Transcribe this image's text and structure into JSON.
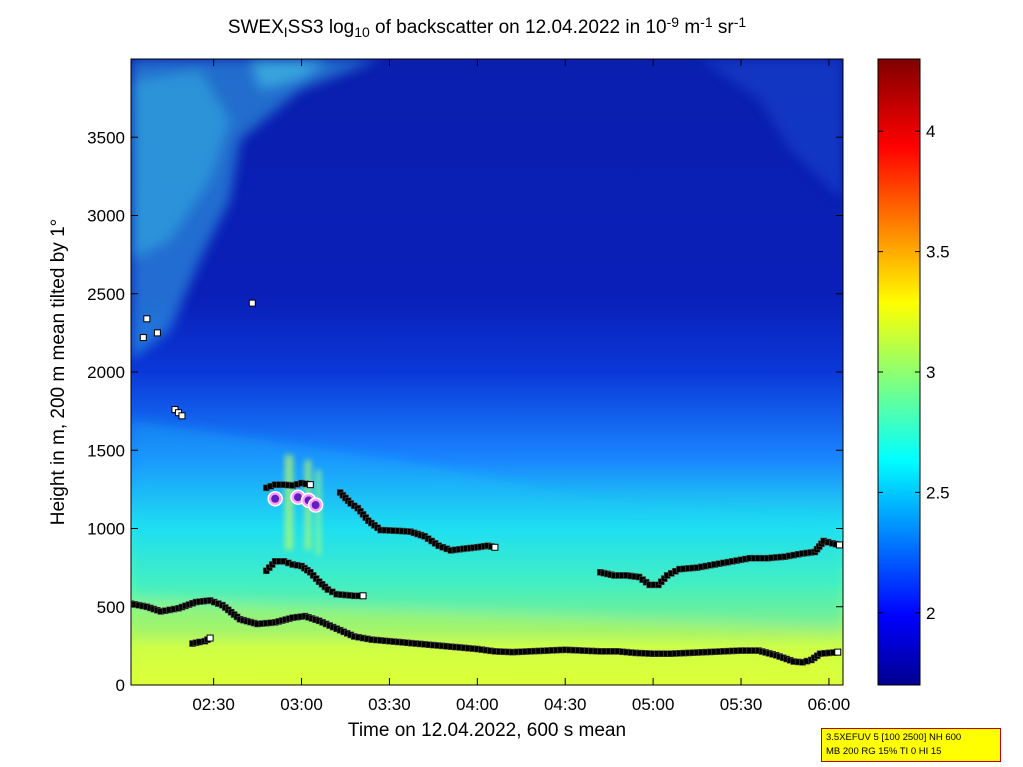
{
  "chart_data": {
    "type": "heatmap",
    "title": {
      "a": "SWEX",
      "a_sub": "I",
      "b": "SS3 log",
      "b_sub": "10",
      "c": " of backscatter on 12.04.2022 in 10",
      "c_sup": "-9",
      "d": " m",
      "d_sup": "-1",
      "e": " sr",
      "e_sup": "-1"
    },
    "xlabel": "Time on 12.04.2022, 600 s mean",
    "ylabel": "Height in m, 200 m mean tilted by 1°",
    "x_ticks": [
      {
        "t": 2.5,
        "label": "02:30"
      },
      {
        "t": 3.0,
        "label": "03:00"
      },
      {
        "t": 3.5,
        "label": "03:30"
      },
      {
        "t": 4.0,
        "label": "04:00"
      },
      {
        "t": 4.5,
        "label": "04:30"
      },
      {
        "t": 5.0,
        "label": "05:00"
      },
      {
        "t": 5.5,
        "label": "05:30"
      },
      {
        "t": 6.0,
        "label": "06:00"
      }
    ],
    "xlim": [
      2.03,
      6.08
    ],
    "y_ticks": [
      0,
      500,
      1000,
      1500,
      2000,
      2500,
      3000,
      3500
    ],
    "ylim": [
      0,
      4000
    ],
    "colorbar": {
      "range": [
        1.7,
        4.3
      ],
      "ticks": [
        2,
        2.5,
        3,
        3.5,
        4
      ],
      "tick_labels": [
        "2",
        "2.5",
        "3",
        "3.5",
        "4"
      ],
      "colormap": "jet"
    },
    "layer_detections": [
      {
        "name": "lower",
        "points": [
          [
            2.03,
            520
          ],
          [
            2.12,
            500
          ],
          [
            2.2,
            470
          ],
          [
            2.3,
            490
          ],
          [
            2.4,
            530
          ],
          [
            2.48,
            540
          ],
          [
            2.55,
            510
          ],
          [
            2.65,
            420
          ],
          [
            2.75,
            390
          ],
          [
            2.85,
            400
          ],
          [
            2.95,
            430
          ],
          [
            3.02,
            440
          ],
          [
            3.1,
            410
          ],
          [
            3.2,
            360
          ],
          [
            3.3,
            310
          ],
          [
            3.4,
            290
          ],
          [
            3.5,
            280
          ],
          [
            3.6,
            270
          ],
          [
            3.7,
            260
          ],
          [
            3.8,
            250
          ],
          [
            3.9,
            240
          ],
          [
            4.0,
            230
          ],
          [
            4.1,
            215
          ],
          [
            4.2,
            210
          ],
          [
            4.3,
            215
          ],
          [
            4.4,
            220
          ],
          [
            4.5,
            225
          ],
          [
            4.6,
            220
          ],
          [
            4.7,
            215
          ],
          [
            4.8,
            215
          ],
          [
            4.9,
            205
          ],
          [
            5.0,
            200
          ],
          [
            5.1,
            200
          ],
          [
            5.2,
            205
          ],
          [
            5.3,
            210
          ],
          [
            5.4,
            215
          ],
          [
            5.5,
            220
          ],
          [
            5.6,
            220
          ],
          [
            5.7,
            190
          ],
          [
            5.8,
            150
          ],
          [
            5.85,
            145
          ],
          [
            5.9,
            160
          ],
          [
            5.95,
            200
          ],
          [
            6.05,
            210
          ]
        ]
      },
      {
        "name": "middle",
        "points": [
          [
            2.8,
            730
          ],
          [
            2.85,
            790
          ],
          [
            2.9,
            790
          ],
          [
            2.95,
            770
          ],
          [
            3.0,
            760
          ],
          [
            3.05,
            720
          ],
          [
            3.1,
            660
          ],
          [
            3.15,
            610
          ],
          [
            3.2,
            580
          ],
          [
            3.3,
            570
          ],
          [
            3.35,
            570
          ]
        ]
      },
      {
        "name": "upper",
        "points": [
          [
            3.22,
            1230
          ],
          [
            3.28,
            1160
          ],
          [
            3.32,
            1130
          ],
          [
            3.38,
            1050
          ],
          [
            3.45,
            990
          ],
          [
            3.55,
            985
          ],
          [
            3.62,
            980
          ],
          [
            3.7,
            950
          ],
          [
            3.78,
            890
          ],
          [
            3.85,
            860
          ],
          [
            3.92,
            870
          ],
          [
            4.0,
            880
          ],
          [
            4.06,
            890
          ],
          [
            4.1,
            880
          ]
        ]
      },
      {
        "name": "right",
        "points": [
          [
            4.7,
            720
          ],
          [
            4.78,
            700
          ],
          [
            4.85,
            700
          ],
          [
            4.92,
            690
          ],
          [
            4.98,
            640
          ],
          [
            5.03,
            640
          ],
          [
            5.08,
            700
          ],
          [
            5.15,
            740
          ],
          [
            5.25,
            750
          ],
          [
            5.35,
            770
          ],
          [
            5.45,
            790
          ],
          [
            5.55,
            810
          ],
          [
            5.65,
            810
          ],
          [
            5.75,
            820
          ],
          [
            5.85,
            840
          ],
          [
            5.92,
            850
          ],
          [
            5.97,
            920
          ],
          [
            6.02,
            905
          ],
          [
            6.06,
            895
          ]
        ]
      },
      {
        "name": "cloud-top",
        "points": [
          [
            2.8,
            1260
          ],
          [
            2.85,
            1280
          ],
          [
            2.9,
            1280
          ],
          [
            2.95,
            1275
          ],
          [
            3.0,
            1290
          ],
          [
            3.05,
            1280
          ]
        ]
      },
      {
        "name": "low-fragment",
        "points": [
          [
            2.38,
            265
          ],
          [
            2.42,
            275
          ],
          [
            2.45,
            280
          ],
          [
            2.48,
            300
          ]
        ]
      }
    ],
    "isolated_markers": [
      [
        2.1,
        2220
      ],
      [
        2.12,
        2340
      ],
      [
        2.18,
        2250
      ],
      [
        2.28,
        1760
      ],
      [
        2.3,
        1740
      ],
      [
        2.32,
        1720
      ],
      [
        2.72,
        2440
      ]
    ],
    "cloud_markers": [
      [
        2.85,
        1190
      ],
      [
        2.98,
        1200
      ],
      [
        3.04,
        1180
      ],
      [
        3.08,
        1150
      ]
    ]
  },
  "param_box": {
    "line1": "3.5XEFUV 5 [100 2500] NH 600",
    "line2": "MB 200 RG 15% TI 0 HI 15"
  }
}
